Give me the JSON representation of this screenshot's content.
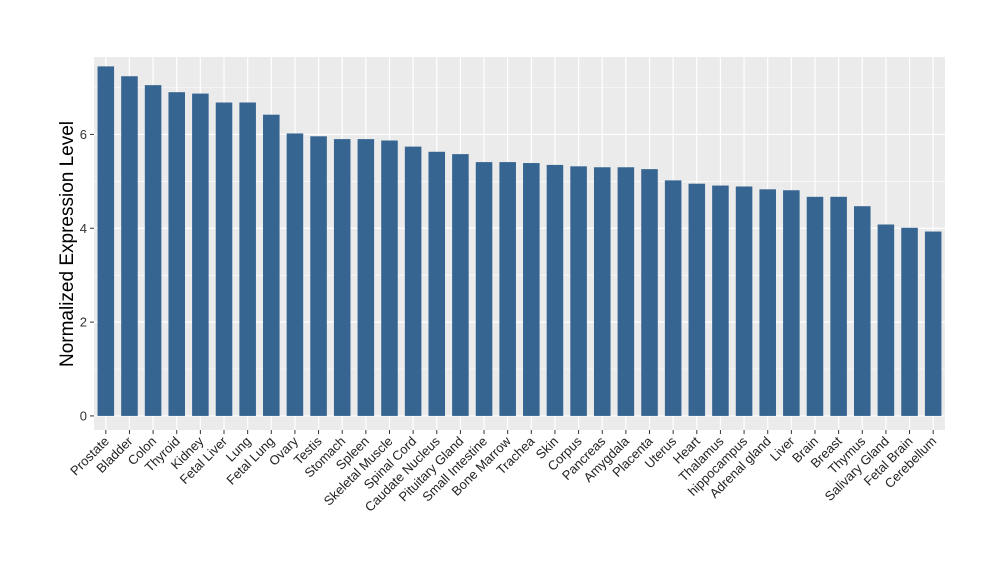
{
  "chart_data": {
    "type": "bar",
    "title": "",
    "xlabel": "",
    "ylabel": "Normalized Expression Level",
    "ylim": [
      -0.3,
      7.65
    ],
    "yticks": [
      0,
      2,
      4,
      6
    ],
    "grid": true,
    "legend": "none",
    "bar_color": "#366591",
    "panel_color": "#ebebeb",
    "grid_color": "#ffffff",
    "categories": [
      "Prostate",
      "Bladder",
      "Colon",
      "Thyroid",
      "Kidney",
      "Fetal Liver",
      "Lung",
      "Fetal Lung",
      "Ovary",
      "Testis",
      "Stomach",
      "Spleen",
      "Skeletal Muscle",
      "Spinal Cord",
      "Caudate Nucleus",
      "Pituitary Gland",
      "Small Intestine",
      "Bone Marrow",
      "Trachea",
      "Skin",
      "Corpus",
      "Pancreas",
      "Amygdala",
      "Placenta",
      "Uterus",
      "Heart",
      "Thalamus",
      "hippocampus",
      "Adrenal gland",
      "Liver",
      "Brain",
      "Breast",
      "Thymus",
      "Salivary Gland",
      "Fetal Brain",
      "Cerebellum"
    ],
    "values": [
      7.45,
      7.24,
      7.05,
      6.9,
      6.87,
      6.68,
      6.68,
      6.42,
      6.02,
      5.96,
      5.9,
      5.9,
      5.87,
      5.74,
      5.63,
      5.58,
      5.41,
      5.41,
      5.39,
      5.35,
      5.32,
      5.3,
      5.3,
      5.26,
      5.02,
      4.95,
      4.91,
      4.89,
      4.83,
      4.81,
      4.67,
      4.67,
      4.47,
      4.08,
      4.01,
      3.93
    ]
  }
}
